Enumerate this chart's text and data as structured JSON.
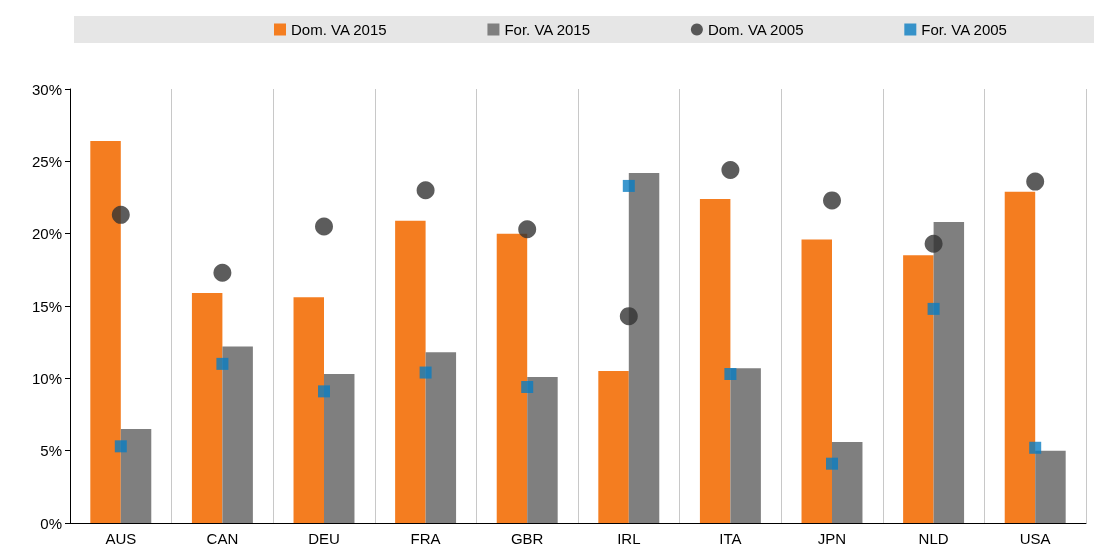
{
  "chart_data": {
    "type": "bar",
    "categories": [
      "AUS",
      "CAN",
      "DEU",
      "FRA",
      "GBR",
      "IRL",
      "ITA",
      "JPN",
      "NLD",
      "USA"
    ],
    "series": [
      {
        "name": "Dom. VA 2015",
        "color": "#f47d20",
        "values": [
          26.4,
          15.9,
          15.6,
          20.9,
          20.0,
          10.5,
          22.4,
          19.6,
          18.5,
          22.9
        ]
      },
      {
        "name": "For. VA 2015",
        "color": "#7f7f7f",
        "values": [
          6.5,
          12.2,
          10.3,
          11.8,
          10.1,
          24.2,
          10.7,
          5.6,
          20.8,
          5.0
        ]
      },
      {
        "name": "Dom. VA 2005",
        "type": "scatter",
        "marker": "circle",
        "color": "#333333",
        "x": [
          "AUS",
          "CAN",
          "DEU",
          "FRA",
          "GBR",
          "IRL",
          "ITA",
          "JPN",
          "NLD",
          "USA"
        ],
        "values": [
          21.3,
          17.3,
          20.5,
          23.0,
          20.3,
          14.3,
          24.4,
          22.3,
          19.3,
          23.6
        ]
      },
      {
        "name": "For. VA 2005",
        "type": "scatter",
        "marker": "square",
        "color": "#0a7dc2",
        "x": [
          "AUS",
          "CAN",
          "DEU",
          "FRA",
          "GBR",
          "IRL",
          "ITA",
          "JPN",
          "NLD",
          "USA"
        ],
        "values": [
          5.3,
          11.0,
          9.1,
          10.4,
          9.4,
          23.3,
          10.3,
          4.1,
          14.8,
          5.2
        ]
      }
    ],
    "ylim": [
      0,
      30
    ],
    "yticks": [
      {
        "value": 0,
        "label": "0%"
      },
      {
        "value": 5,
        "label": "5%"
      },
      {
        "value": 10,
        "label": "10%"
      },
      {
        "value": 15,
        "label": "15%"
      },
      {
        "value": 20,
        "label": "20%"
      },
      {
        "value": 25,
        "label": "25%"
      },
      {
        "value": 30,
        "label": "30%"
      }
    ],
    "grid": "x",
    "legend": "top"
  }
}
